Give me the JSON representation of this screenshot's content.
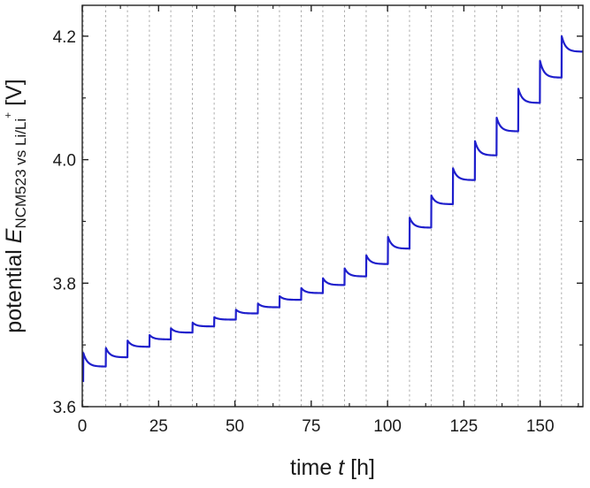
{
  "chart_data": {
    "type": "line",
    "xlabel": {
      "prefix": "time ",
      "symbol": "t",
      "suffix": " [h]"
    },
    "ylabel": {
      "prefix": "potential ",
      "symbol": "E",
      "subscript": "NCM523 vs Li/Li",
      "superscript": "+",
      "suffix": " [V]"
    },
    "xlim": [
      0,
      164
    ],
    "ylim": [
      3.6,
      4.25
    ],
    "xticks": [
      0,
      25,
      50,
      75,
      100,
      125,
      150
    ],
    "xtick_labels": [
      "0",
      "25",
      "50",
      "75",
      "100",
      "125",
      "150"
    ],
    "yticks": [
      3.6,
      3.8,
      4.0,
      4.2
    ],
    "ytick_labels": [
      "3.6",
      "3.8",
      "4.0",
      "4.2"
    ],
    "grid": "vertical dashed lines at each pulse start",
    "vgrid_x": [
      0.3,
      7.7,
      14.8,
      22.0,
      29.0,
      36.1,
      43.2,
      50.3,
      57.5,
      64.6,
      71.7,
      78.8,
      85.9,
      93.0,
      100.1,
      107.2,
      114.3,
      121.4,
      128.6,
      135.7,
      142.8,
      149.9,
      157.0
    ],
    "series": [
      {
        "color": "#1f1fcc",
        "pulses": [
          {
            "t": 0.3,
            "v0": 3.64,
            "peak": 3.687,
            "v_end": 3.665
          },
          {
            "t": 7.7,
            "v0": 3.665,
            "peak": 3.695,
            "v_end": 3.68
          },
          {
            "t": 14.8,
            "v0": 3.68,
            "peak": 3.707,
            "v_end": 3.697
          },
          {
            "t": 22.0,
            "v0": 3.697,
            "peak": 3.716,
            "v_end": 3.709
          },
          {
            "t": 29.0,
            "v0": 3.709,
            "peak": 3.727,
            "v_end": 3.72
          },
          {
            "t": 36.1,
            "v0": 3.72,
            "peak": 3.736,
            "v_end": 3.73
          },
          {
            "t": 43.2,
            "v0": 3.73,
            "peak": 3.745,
            "v_end": 3.741
          },
          {
            "t": 50.3,
            "v0": 3.741,
            "peak": 3.757,
            "v_end": 3.751
          },
          {
            "t": 57.5,
            "v0": 3.751,
            "peak": 3.767,
            "v_end": 3.761
          },
          {
            "t": 64.6,
            "v0": 3.761,
            "peak": 3.779,
            "v_end": 3.773
          },
          {
            "t": 71.7,
            "v0": 3.773,
            "peak": 3.792,
            "v_end": 3.784
          },
          {
            "t": 78.8,
            "v0": 3.784,
            "peak": 3.808,
            "v_end": 3.797
          },
          {
            "t": 85.9,
            "v0": 3.797,
            "peak": 3.824,
            "v_end": 3.811
          },
          {
            "t": 93.0,
            "v0": 3.811,
            "peak": 3.845,
            "v_end": 3.831
          },
          {
            "t": 100.1,
            "v0": 3.831,
            "peak": 3.875,
            "v_end": 3.856
          },
          {
            "t": 107.2,
            "v0": 3.856,
            "peak": 3.906,
            "v_end": 3.89
          },
          {
            "t": 114.3,
            "v0": 3.89,
            "peak": 3.942,
            "v_end": 3.928
          },
          {
            "t": 121.4,
            "v0": 3.928,
            "peak": 3.986,
            "v_end": 3.967
          },
          {
            "t": 128.6,
            "v0": 3.967,
            "peak": 4.03,
            "v_end": 4.007
          },
          {
            "t": 135.7,
            "v0": 4.007,
            "peak": 4.068,
            "v_end": 4.046
          },
          {
            "t": 142.8,
            "v0": 4.046,
            "peak": 4.115,
            "v_end": 4.092
          },
          {
            "t": 149.9,
            "v0": 4.092,
            "peak": 4.16,
            "v_end": 4.133
          },
          {
            "t": 157.0,
            "v0": 4.133,
            "peak": 4.2,
            "v_end": 4.175
          }
        ],
        "x_end": 164
      }
    ]
  }
}
